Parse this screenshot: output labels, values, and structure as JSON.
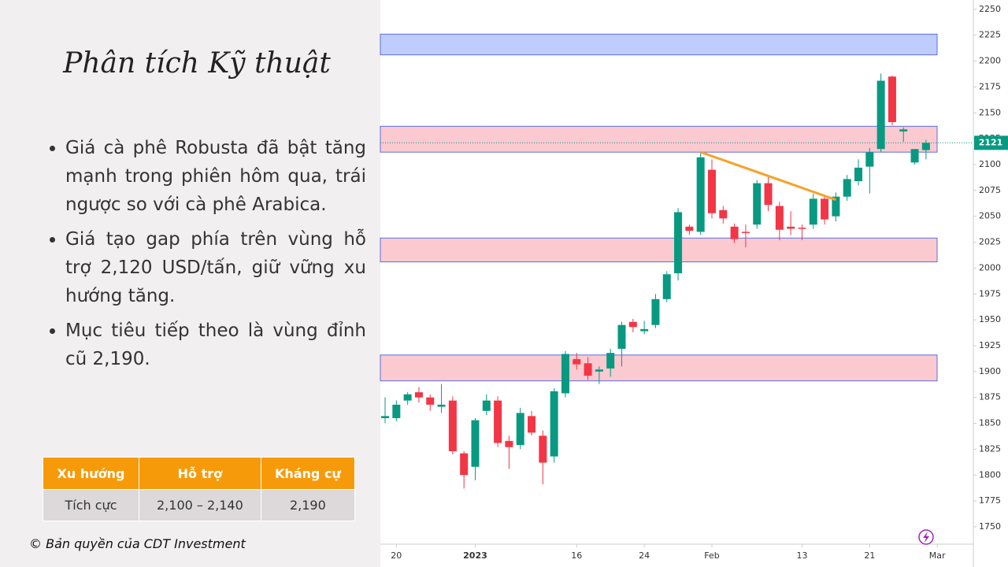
{
  "slide": {
    "title": "Phân tích Kỹ thuật",
    "bullets": [
      "Giá cà phê Robusta đã bật tăng mạnh trong phiên hôm qua, trái ngược so với cà phê Arabica.",
      "Giá tạo gap phía trên vùng hỗ trợ 2,120 USD/tấn, giữ vững xu hướng tăng.",
      "Mục tiêu tiếp theo là vùng đỉnh cũ 2,190."
    ],
    "table": {
      "header": [
        "Xu hướng",
        "Hỗ trợ",
        "Kháng cự"
      ],
      "rows": [
        [
          "Tích cực",
          "2,100 – 2,140",
          "2,190"
        ]
      ]
    },
    "footer": "© Bản quyền của CDT Investment"
  },
  "chart_data": {
    "type": "candlestick",
    "up_color": "#089981",
    "down_color": "#f23645",
    "open": [
      1855,
      1855,
      1872,
      1880,
      1875,
      1866,
      1872,
      1821,
      1808,
      1862,
      1872,
      1833,
      1829,
      1857,
      1838,
      1818,
      1879,
      1912,
      1908,
      1900,
      1903,
      1922,
      1948,
      1939,
      1945,
      1970,
      1995,
      2040,
      2035,
      2095,
      2056,
      2040,
      2035,
      2042,
      2082,
      2060,
      2040,
      2039,
      2042,
      2067,
      2050,
      2069,
      2084,
      2098,
      2115,
      2185,
      2132,
      2102,
      2114
    ],
    "high": [
      1875,
      1872,
      1880,
      1885,
      1878,
      1888,
      1876,
      1823,
      1855,
      1878,
      1876,
      1838,
      1865,
      1862,
      1843,
      1884,
      1920,
      1918,
      1914,
      1905,
      1922,
      1948,
      1951,
      1949,
      1975,
      1997,
      2058,
      2042,
      2112,
      2105,
      2060,
      2043,
      2042,
      2085,
      2090,
      2064,
      2055,
      2042,
      2072,
      2070,
      2073,
      2090,
      2105,
      2116,
      2188,
      2186,
      2136,
      2115,
      2124
    ],
    "low": [
      1850,
      1852,
      1868,
      1870,
      1862,
      1860,
      1820,
      1787,
      1795,
      1858,
      1827,
      1806,
      1825,
      1838,
      1791,
      1812,
      1875,
      1902,
      1892,
      1888,
      1895,
      1905,
      1938,
      1936,
      1942,
      1967,
      1988,
      2032,
      2032,
      2048,
      2043,
      2024,
      2020,
      2038,
      2055,
      2027,
      2032,
      2027,
      2038,
      2042,
      2045,
      2065,
      2080,
      2072,
      2112,
      2138,
      2122,
      2100,
      2105
    ],
    "close": [
      1857,
      1868,
      1878,
      1875,
      1868,
      1868,
      1823,
      1800,
      1853,
      1872,
      1831,
      1827,
      1860,
      1841,
      1812,
      1881,
      1917,
      1907,
      1896,
      1902,
      1918,
      1945,
      1943,
      1941,
      1970,
      1994,
      2054,
      2036,
      2107,
      2053,
      2048,
      2028,
      2034,
      2082,
      2061,
      2037,
      2038,
      2038,
      2067,
      2047,
      2069,
      2086,
      2097,
      2112,
      2181,
      2141,
      2134,
      2115,
      2121
    ],
    "xticks": [
      {
        "value": 1,
        "label": "20"
      },
      {
        "value": 8,
        "label": "2023"
      },
      {
        "value": 17,
        "label": "16"
      },
      {
        "value": 23,
        "label": "24"
      },
      {
        "value": 29,
        "label": "Feb"
      },
      {
        "value": 37,
        "label": "13"
      },
      {
        "value": 43,
        "label": "21"
      },
      {
        "value": 49,
        "label": "Mar"
      }
    ],
    "ylim": [
      1734,
      2259
    ],
    "yticks": [
      1750,
      1775,
      1800,
      1825,
      1850,
      1875,
      1900,
      1925,
      1950,
      1975,
      2000,
      2025,
      2050,
      2075,
      2100,
      2125,
      2150,
      2175,
      2200,
      2225,
      2250
    ],
    "zones": [
      {
        "low": 2206,
        "high": 2226,
        "color": "#b8c7ff"
      },
      {
        "low": 2112,
        "high": 2137,
        "color": "#fbc3cb"
      },
      {
        "low": 2006,
        "high": 2029,
        "color": "#fbc3cb"
      },
      {
        "low": 1891,
        "high": 1916,
        "color": "#fbc3cb"
      }
    ],
    "trendline": {
      "x": [
        28,
        40
      ],
      "y": [
        2112,
        2066
      ],
      "color": "#f7a12a"
    },
    "last_price": 2121
  }
}
